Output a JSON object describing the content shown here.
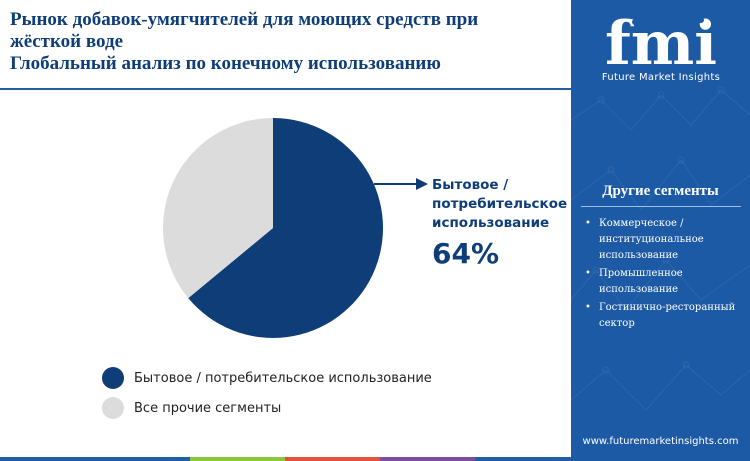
{
  "title": {
    "lines": [
      "Рынок добавок-умягчителей для моющих средств при",
      "жёсткой воде",
      "Глобальный анализ по конечному использованию"
    ]
  },
  "chart_data": {
    "type": "pie",
    "title": "Рынок добавок-умягчителей для моющих средств при жёсткой воде Глобальный анализ по конечному использованию",
    "slices": [
      {
        "name": "Бытовое / потребительское использование",
        "value": 64,
        "color": "#0e3d78"
      },
      {
        "name": "Все прочие сегменты",
        "value": 36,
        "color": "#dcdcdc"
      }
    ],
    "callout": {
      "label_lines": [
        "Бытовое /",
        "потребительское",
        "использование"
      ],
      "value": "64%"
    },
    "legend_position": "bottom-left"
  },
  "legend": [
    {
      "label": "Бытовое / потребительское использование",
      "color": "#0e3d78"
    },
    {
      "label": "Все прочие сегменты",
      "color": "#dcdcdc"
    }
  ],
  "side_panel": {
    "logo_text": "fmi",
    "logo_caption": "Future Market Insights",
    "heading": "Другие сегменты",
    "items": [
      "Коммерческое / институциональное использование",
      "Промышленное использование",
      "Гостинично-ресторанный сектор"
    ],
    "url": "www.futuremarketinsights.com",
    "bg_color": "#1d5aa5"
  },
  "colors": {
    "primary": "#0e3d78",
    "bottom_bar": [
      "#1f5fa8",
      "#8cc63f",
      "#e0533d",
      "#7b4fa0",
      "#1f5fa8"
    ]
  }
}
